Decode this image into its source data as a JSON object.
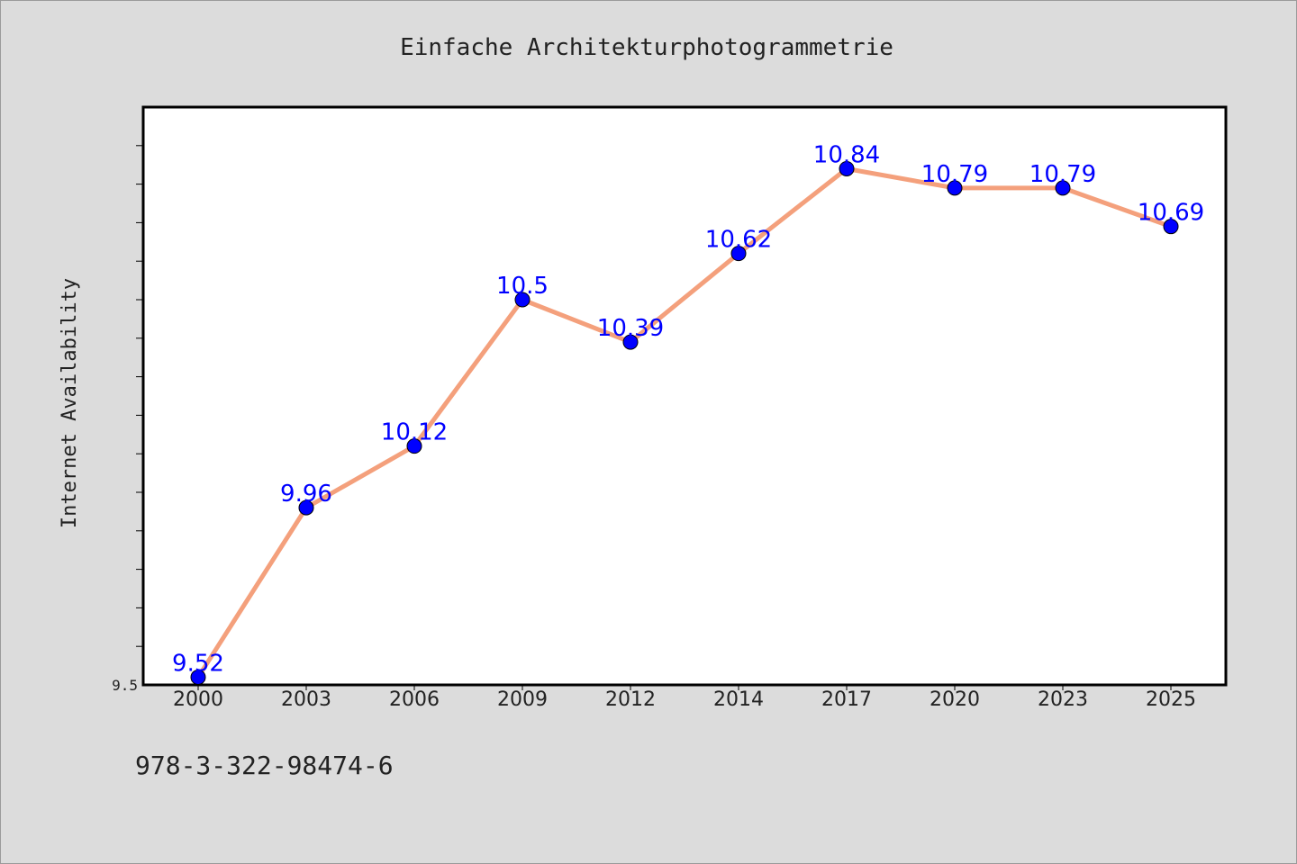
{
  "chart_data": {
    "type": "line",
    "title": "Einfache Architekturphotogrammetrie",
    "xlabel": "",
    "ylabel": "Internet Availability",
    "categories": [
      "2000",
      "2003",
      "2006",
      "2009",
      "2012",
      "2014",
      "2017",
      "2020",
      "2023",
      "2025"
    ],
    "series": [
      {
        "values": [
          9.52,
          9.96,
          10.12,
          10.5,
          10.39,
          10.62,
          10.84,
          10.79,
          10.79,
          10.69
        ],
        "line_color": "#f4a07c",
        "marker_color": "#0000ff"
      }
    ],
    "data_labels": [
      "9.52",
      "9.96",
      "10.12",
      "10.5",
      "10.39",
      "10.62",
      "10.84",
      "10.79",
      "10.79",
      "10.69"
    ],
    "ylim": [
      9.5,
      11.0
    ],
    "y_tick_labels": [
      "9.5"
    ],
    "grid": false,
    "legend": "none",
    "colors": {
      "background": "#dcdcdc",
      "plot_background": "#ffffff",
      "label_color": "#0000ff"
    }
  },
  "footer": {
    "isbn": "978-3-322-98474-6"
  }
}
